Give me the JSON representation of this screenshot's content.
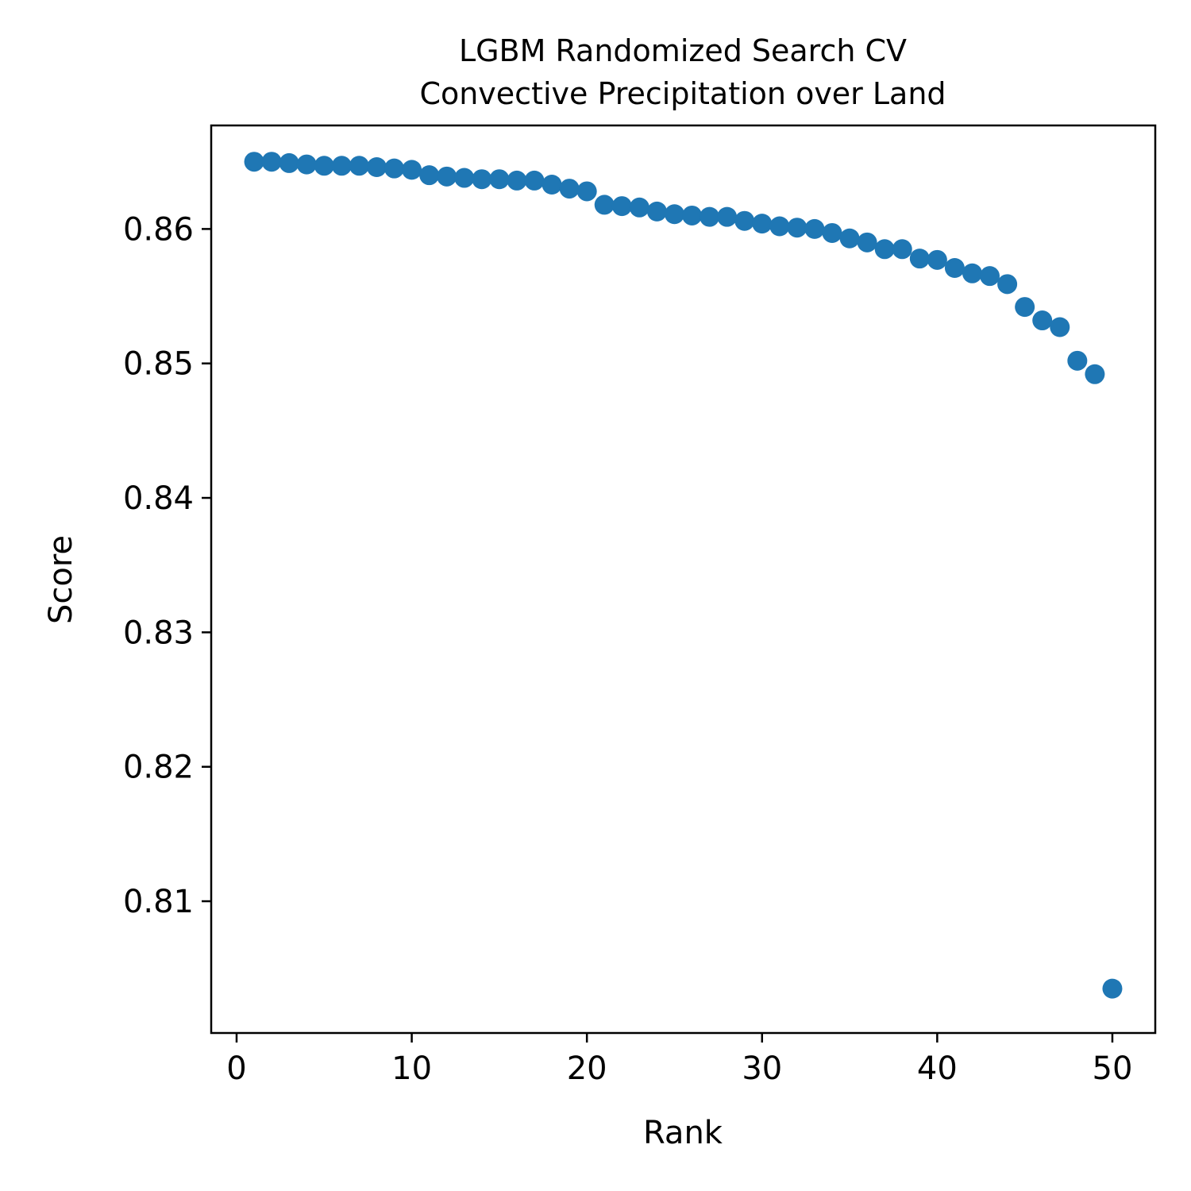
{
  "chart_data": {
    "type": "scatter",
    "title": "LGBM Randomized Search CV",
    "subtitle": "Convective Precipitation over Land",
    "xlabel": "Rank",
    "ylabel": "Score",
    "xlim": [
      -1.45,
      52.45
    ],
    "ylim": [
      0.8002,
      0.8677
    ],
    "xticks": [
      0,
      10,
      20,
      30,
      40,
      50
    ],
    "yticks": [
      0.81,
      0.82,
      0.83,
      0.84,
      0.85,
      0.86
    ],
    "grid": false,
    "marker_color": "#1f77b4",
    "series": [
      {
        "x": [
          1,
          2,
          3,
          4,
          5,
          6,
          7,
          8,
          9,
          10,
          11,
          12,
          13,
          14,
          15,
          16,
          17,
          18,
          19,
          20,
          21,
          22,
          23,
          24,
          25,
          26,
          27,
          28,
          29,
          30,
          31,
          32,
          33,
          34,
          35,
          36,
          37,
          38,
          39,
          40,
          41,
          42,
          43,
          44,
          45,
          46,
          47,
          48,
          49,
          50
        ],
        "y": [
          0.865,
          0.865,
          0.8649,
          0.8648,
          0.8647,
          0.8647,
          0.8647,
          0.8646,
          0.8645,
          0.8644,
          0.864,
          0.8639,
          0.8638,
          0.8637,
          0.8637,
          0.8636,
          0.8636,
          0.8633,
          0.863,
          0.8628,
          0.8618,
          0.8617,
          0.8616,
          0.8613,
          0.8611,
          0.861,
          0.8609,
          0.8609,
          0.8606,
          0.8604,
          0.8602,
          0.8601,
          0.86,
          0.8597,
          0.8593,
          0.859,
          0.8585,
          0.8585,
          0.8578,
          0.8577,
          0.8571,
          0.8567,
          0.8565,
          0.8559,
          0.8542,
          0.8532,
          0.8527,
          0.8502,
          0.8492,
          0.8035
        ]
      }
    ]
  }
}
